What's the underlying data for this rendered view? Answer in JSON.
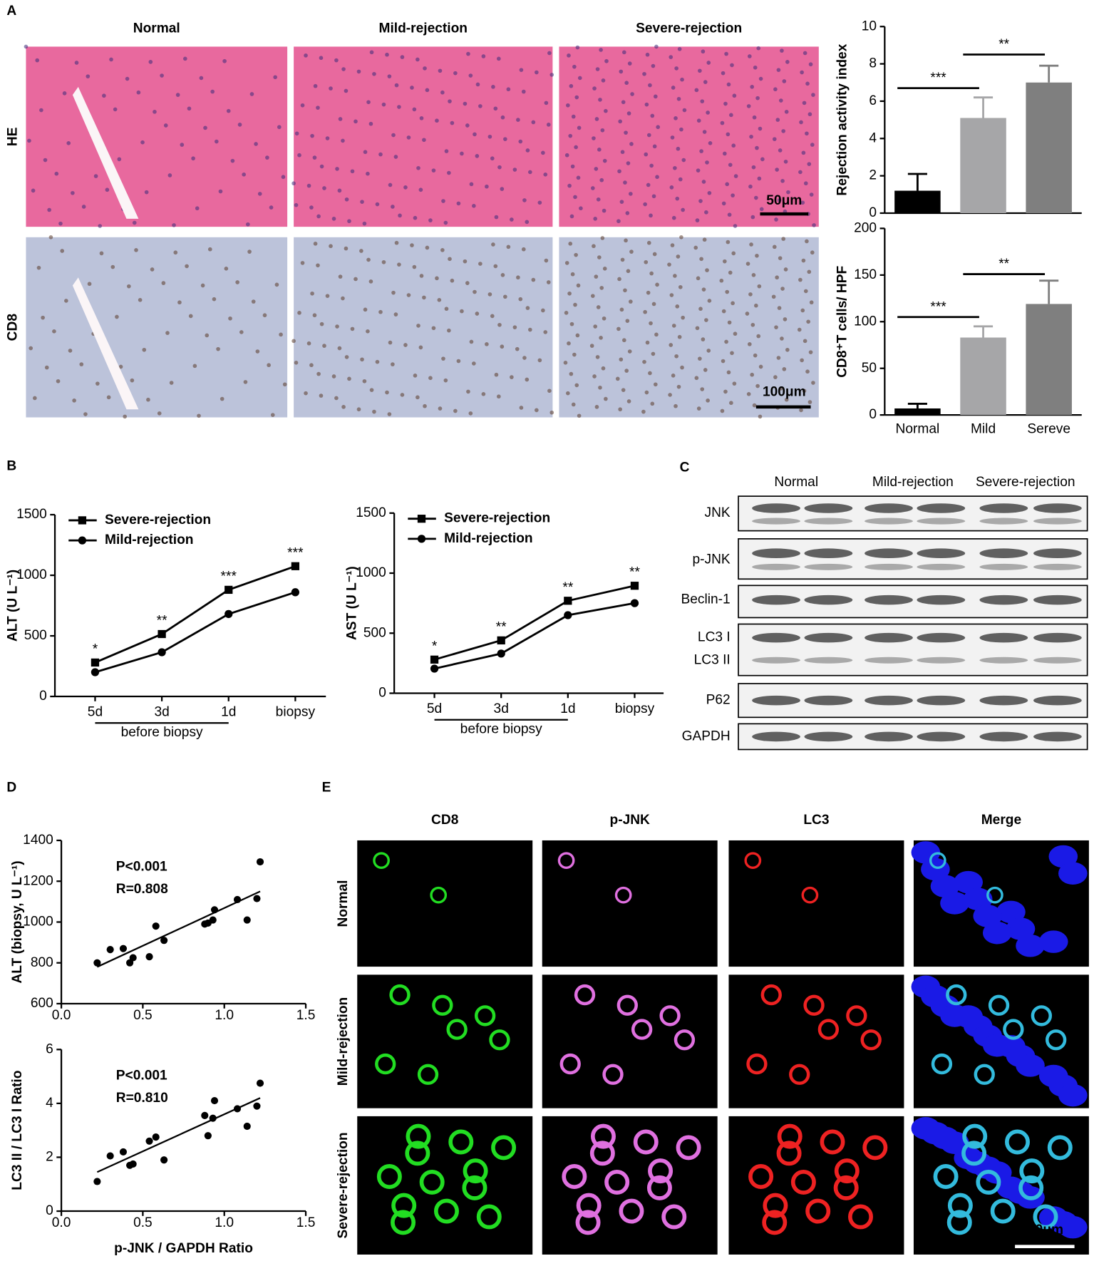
{
  "panel_labels": [
    "A",
    "B",
    "C",
    "D",
    "E"
  ],
  "histology": {
    "columns": [
      "Normal",
      "Mild-rejection",
      "Severe-rejection"
    ],
    "rows": [
      "HE",
      "CD8"
    ],
    "scale_bars": [
      "50μm",
      "100μm"
    ]
  },
  "chart_data": [
    {
      "type": "bar",
      "categories": [
        null,
        null,
        null
      ],
      "values": [
        1.2,
        5.1,
        7.0
      ],
      "errors": [
        0.9,
        1.1,
        0.9
      ],
      "colors": [
        "#000000",
        "#a6a6a8",
        "#7f7f7f"
      ],
      "ylabel": "Rejection activity index",
      "ylim": [
        0,
        10
      ],
      "yticks": [
        0,
        2,
        4,
        6,
        8,
        10
      ],
      "significance": [
        {
          "label": "***",
          "y": 6.7
        },
        {
          "label": "**",
          "y": 8.5
        }
      ]
    },
    {
      "type": "bar",
      "categories": [
        "Normal",
        "Mild",
        "Sereve"
      ],
      "values": [
        7,
        83,
        119
      ],
      "errors": [
        5,
        12,
        25
      ],
      "colors": [
        "#000000",
        "#a6a6a8",
        "#7f7f7f"
      ],
      "ylabel": "CD8⁺T cells/ HPF",
      "ylim": [
        0,
        200
      ],
      "yticks": [
        0,
        50,
        100,
        150,
        200
      ],
      "significance": [
        {
          "label": "***",
          "y": 105
        },
        {
          "label": "**",
          "y": 151
        }
      ]
    },
    {
      "type": "line",
      "categories": [
        "5d",
        "3d",
        "1d",
        "biopsy"
      ],
      "category_group": "before biopsy",
      "ylabel": "ALT (U L⁻¹)",
      "ylim": [
        0,
        1500
      ],
      "yticks": [
        0,
        500,
        1000,
        1500
      ],
      "series": [
        {
          "name": "Severe-rejection",
          "color": "#000000",
          "marker": "square",
          "values": [
            280,
            515,
            880,
            1075
          ]
        },
        {
          "name": "Mild-rejection",
          "color": "#000000",
          "marker": "circle",
          "values": [
            200,
            365,
            680,
            860
          ]
        }
      ],
      "annotations": [
        "*",
        "**",
        "***",
        "***"
      ]
    },
    {
      "type": "line",
      "categories": [
        "5d",
        "3d",
        "1d",
        "biopsy"
      ],
      "category_group": "before biopsy",
      "ylabel": "AST (U L⁻¹)",
      "ylim": [
        0,
        1500
      ],
      "yticks": [
        0,
        500,
        1000,
        1500
      ],
      "series": [
        {
          "name": "Severe-rejection",
          "color": "#000000",
          "marker": "square",
          "values": [
            280,
            440,
            770,
            895
          ]
        },
        {
          "name": "Mild-rejection",
          "color": "#000000",
          "marker": "circle",
          "values": [
            205,
            330,
            650,
            750
          ]
        }
      ],
      "annotations": [
        "*",
        "**",
        "**",
        "**"
      ]
    },
    {
      "type": "scatter",
      "color": "#000000",
      "x": [
        0.22,
        0.3,
        0.38,
        0.42,
        0.44,
        0.54,
        0.58,
        0.63,
        0.88,
        0.9,
        0.93,
        0.94,
        1.08,
        1.14,
        1.2,
        1.22
      ],
      "y": [
        800,
        865,
        870,
        800,
        825,
        830,
        980,
        910,
        990,
        995,
        1010,
        1060,
        1110,
        1010,
        1115,
        1295
      ],
      "fit": {
        "x": [
          0.22,
          1.22
        ],
        "y": [
          780,
          1150
        ]
      },
      "stats": [
        "P<0.001",
        "R=0.808"
      ],
      "ylabel": "ALT (biopsy, U L⁻¹)",
      "xlim": [
        0,
        1.5
      ],
      "xticks": [
        {
          "value": 0,
          "label": "0.0"
        },
        0.5,
        {
          "value": 1,
          "label": "1.0"
        },
        1.5
      ],
      "ylim": [
        600,
        1400
      ],
      "yticks": [
        600,
        800,
        1000,
        1200,
        1400
      ]
    },
    {
      "type": "scatter",
      "color": "#000000",
      "x": [
        0.22,
        0.3,
        0.38,
        0.42,
        0.44,
        0.54,
        0.58,
        0.63,
        0.88,
        0.9,
        0.93,
        0.94,
        1.08,
        1.14,
        1.2,
        1.22
      ],
      "y": [
        1.1,
        2.05,
        2.2,
        1.7,
        1.75,
        2.6,
        2.75,
        1.9,
        3.55,
        2.8,
        3.45,
        4.1,
        3.8,
        3.15,
        3.9,
        4.75
      ],
      "fit": {
        "x": [
          0.22,
          1.22
        ],
        "y": [
          1.45,
          4.2
        ]
      },
      "stats": [
        "P<0.001",
        "R=0.810"
      ],
      "ylabel": "LC3 II / LC3 I Ratio",
      "xlabel": "p-JNK / GAPDH Ratio",
      "xlim": [
        0,
        1.5
      ],
      "xticks": [
        {
          "value": 0,
          "label": "0.0"
        },
        0.5,
        {
          "value": 1,
          "label": "1.0"
        },
        1.5
      ],
      "ylim": [
        0,
        6
      ],
      "yticks": [
        0,
        2,
        4,
        6
      ]
    }
  ],
  "western_blot": {
    "columns": [
      "Normal",
      "Mild-rejection",
      "Severe-rejection"
    ],
    "rows": [
      "JNK",
      "p-JNK",
      "Beclin-1",
      "LC3 I",
      "LC3 II",
      "P62",
      "GAPDH"
    ]
  },
  "immunofluorescence": {
    "columns": [
      "CD8",
      "p-JNK",
      "LC3",
      "Merge"
    ],
    "column_colors": [
      "#1ed21e",
      "#e64be6",
      "#e61e1e",
      "#000000"
    ],
    "rows": [
      "Normal",
      "Mild-rejection",
      "Severe-rejection"
    ],
    "scale_bar": "50μm"
  }
}
